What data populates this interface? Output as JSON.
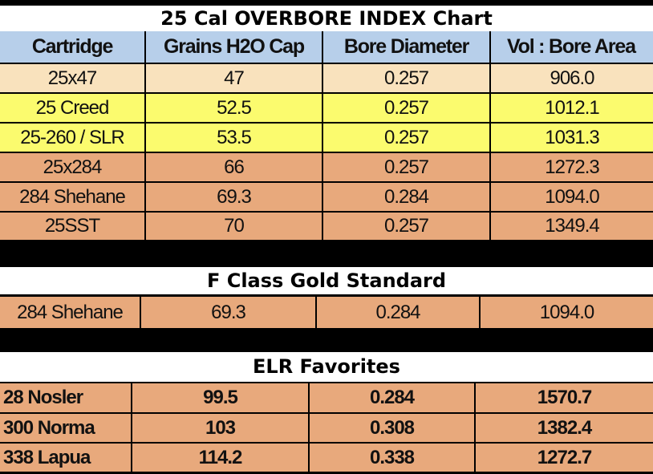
{
  "chart1": {
    "title": "25 Cal OVERBORE INDEX Chart",
    "headers": [
      "Cartridge",
      "Grains H2O Cap",
      "Bore Diameter",
      "Vol : Bore Area"
    ],
    "rows": [
      {
        "color": "peach",
        "cells": [
          "25x47",
          "47",
          "0.257",
          "906.0"
        ]
      },
      {
        "color": "yellow",
        "cells": [
          "25 Creed",
          "52.5",
          "0.257",
          "1012.1"
        ]
      },
      {
        "color": "yellow",
        "cells": [
          "25-260 / SLR",
          "53.5",
          "0.257",
          "1031.3"
        ]
      },
      {
        "color": "orange",
        "cells": [
          "25x284",
          "66",
          "0.257",
          "1272.3"
        ]
      },
      {
        "color": "orange",
        "cells": [
          "284 Shehane",
          "69.3",
          "0.284",
          "1094.0"
        ]
      },
      {
        "color": "orange",
        "cells": [
          "25SST",
          "70",
          "0.257",
          "1349.4"
        ]
      }
    ]
  },
  "fclass": {
    "title": "F Class Gold Standard",
    "rows": [
      {
        "cells": [
          "284 Shehane",
          "69.3",
          "0.284",
          "1094.0"
        ]
      }
    ]
  },
  "elr": {
    "title": "ELR Favorites",
    "rows": [
      {
        "cells": [
          "28 Nosler",
          "99.5",
          "0.284",
          "1570.7"
        ]
      },
      {
        "cells": [
          "300 Norma",
          "103",
          "0.308",
          "1382.4"
        ]
      },
      {
        "cells": [
          "338 Lapua",
          "114.2",
          "0.338",
          "1272.7"
        ]
      }
    ]
  },
  "colors": {
    "header": "#b7cfea",
    "peach": "#f9e2bd",
    "yellow": "#fbfb6e",
    "orange": "#e8a97c"
  }
}
